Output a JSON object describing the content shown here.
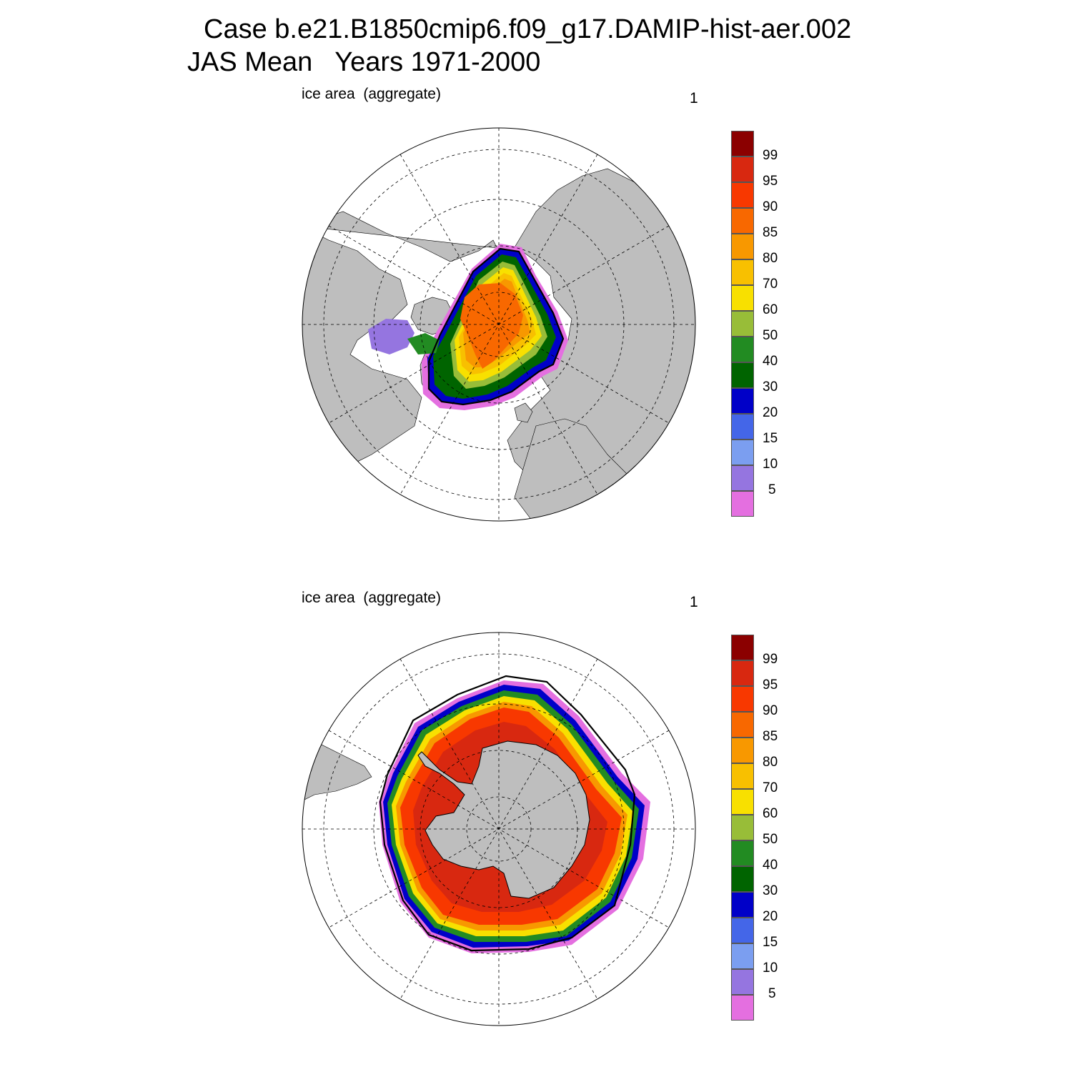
{
  "figure": {
    "title_line1": "Case b.e21.B1850cmip6.f09_g17.DAMIP-hist-aer.002",
    "title_line2": "JAS Mean   Years 1971-2000"
  },
  "panels": [
    {
      "hemisphere": "north",
      "label": "ice area  (aggregate)",
      "number": "1"
    },
    {
      "hemisphere": "south",
      "label": "ice area  (aggregate)",
      "number": "1"
    }
  ],
  "colorbar": {
    "levels": [
      "5",
      "10",
      "15",
      "20",
      "30",
      "40",
      "50",
      "60",
      "70",
      "80",
      "85",
      "90",
      "95",
      "99"
    ],
    "colors": [
      "#e46fe0",
      "#9575e0",
      "#7b9ef0",
      "#4466e8",
      "#0000c8",
      "#006400",
      "#228b22",
      "#98bd38",
      "#f8e000",
      "#f8c000",
      "#f89800",
      "#f86800",
      "#f83800",
      "#d82810",
      "#8b0000"
    ]
  },
  "map_colors": {
    "land": "#bebebe",
    "ocean": "#ffffff",
    "grid": "#000000"
  }
}
